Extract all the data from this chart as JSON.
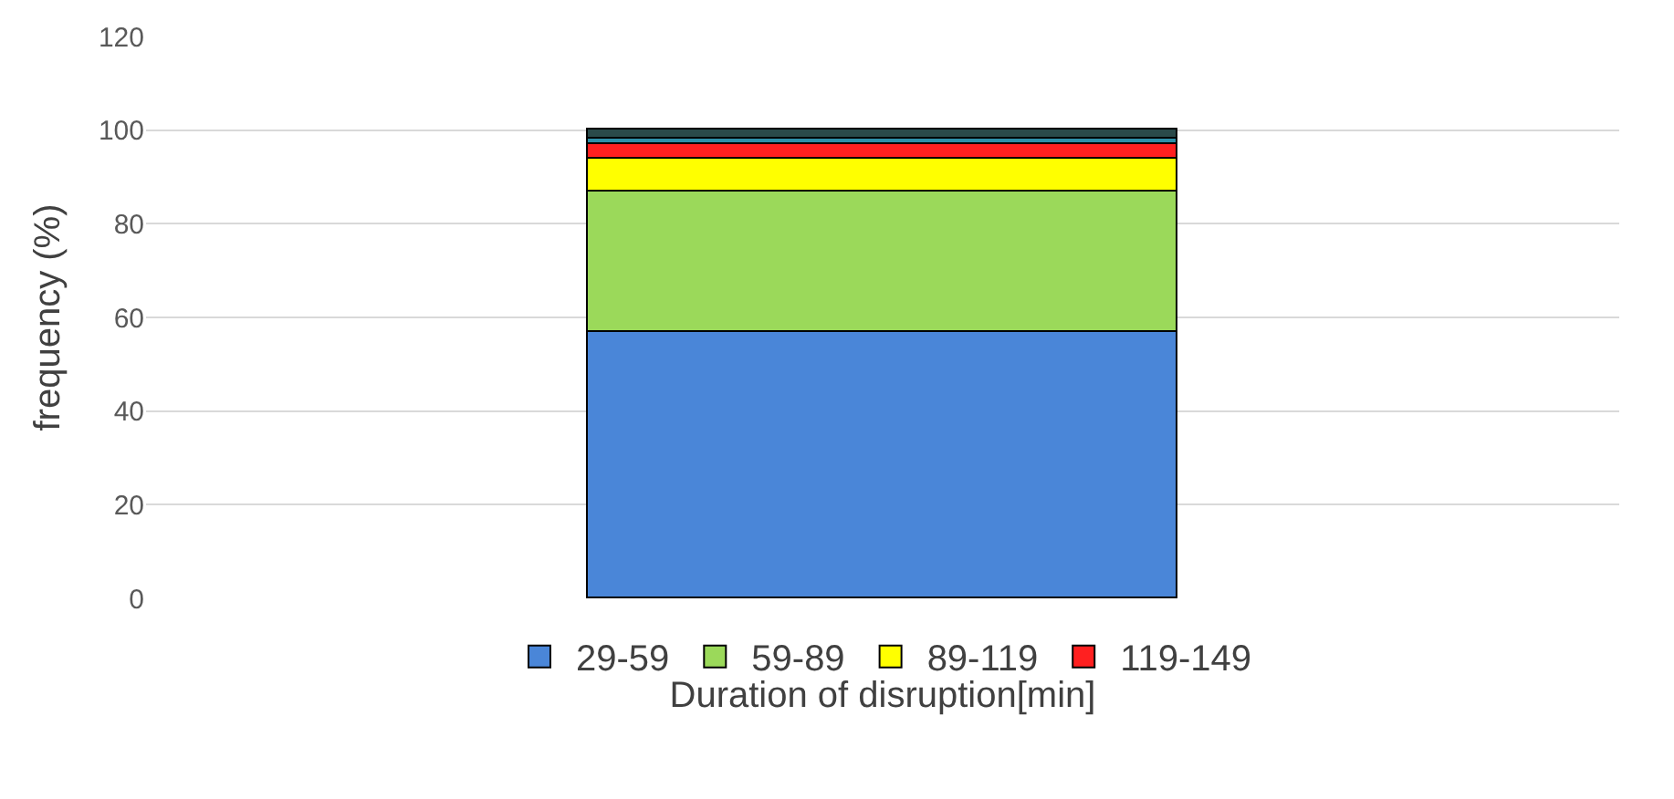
{
  "chart_data": {
    "type": "bar",
    "stacked": true,
    "xlabel": "Duration of disruption[min]",
    "ylabel": "frequency (%)",
    "categories": [
      null
    ],
    "series": [
      {
        "name": "29-59",
        "color": "#4a86d8",
        "values": [
          57
        ]
      },
      {
        "name": "59-89",
        "color": "#9bd95a",
        "values": [
          30
        ]
      },
      {
        "name": "89-119",
        "color": "#ffff00",
        "values": [
          7
        ]
      },
      {
        "name": "119-149",
        "color": "#ff2020",
        "values": [
          3
        ]
      },
      {
        "color": "#2e8fa8",
        "values": [
          1
        ]
      },
      {
        "color": "#2a4a4a",
        "values": [
          2
        ]
      }
    ],
    "ylim": [
      0,
      120
    ],
    "yticks": [
      0,
      20,
      40,
      60,
      80,
      100,
      120
    ],
    "grid": "y",
    "legend": "bottom"
  }
}
